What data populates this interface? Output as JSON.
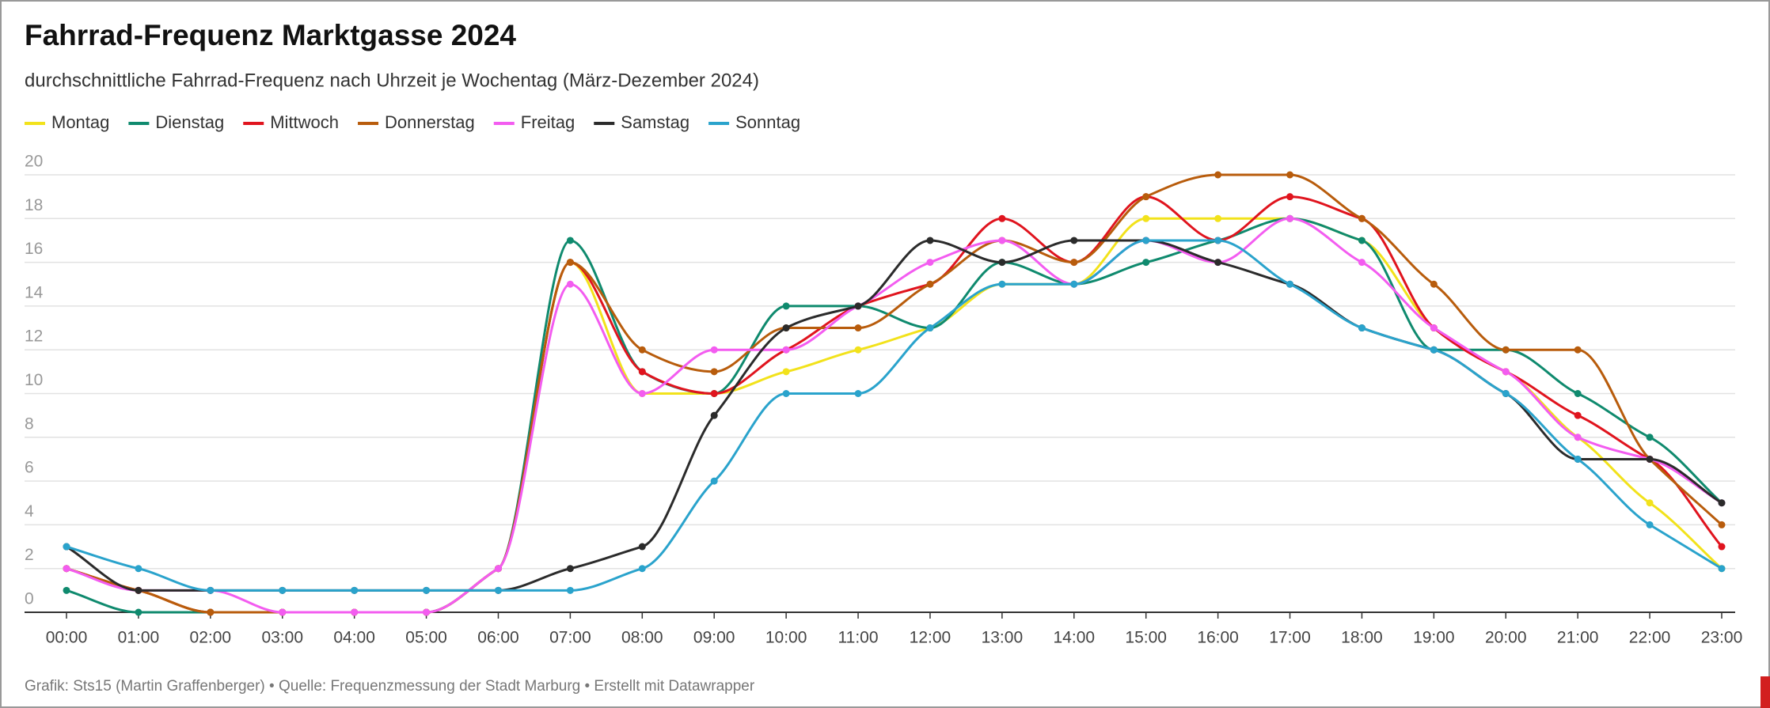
{
  "chart_data": {
    "type": "line",
    "title": "Fahrrad-Frequenz Marktgasse 2024",
    "subtitle": "durchschnittliche Fahrrad-Frequenz nach Uhrzeit je Wochentag (März-Dezember 2024)",
    "footer": "Grafik: Sts15 (Martin Graffenberger) • Quelle: Frequenzmessung der Stadt Marburg • Erstellt mit Datawrapper",
    "categories": [
      "00:00",
      "01:00",
      "02:00",
      "03:00",
      "04:00",
      "05:00",
      "06:00",
      "07:00",
      "08:00",
      "09:00",
      "10:00",
      "11:00",
      "12:00",
      "13:00",
      "14:00",
      "15:00",
      "16:00",
      "17:00",
      "18:00",
      "19:00",
      "20:00",
      "21:00",
      "22:00",
      "23:00"
    ],
    "ylim": [
      0,
      20
    ],
    "yticks": [
      0,
      2,
      4,
      6,
      8,
      10,
      12,
      14,
      16,
      18,
      20
    ],
    "grid": true,
    "legend": "top",
    "series": [
      {
        "name": "Montag",
        "color": "#f2e21b",
        "values": [
          2,
          1,
          0,
          0,
          0,
          0,
          2,
          16,
          10,
          10,
          11,
          12,
          13,
          15,
          15,
          18,
          18,
          18,
          17,
          13,
          11,
          8,
          5,
          2
        ]
      },
      {
        "name": "Dienstag",
        "color": "#0f8a6e",
        "values": [
          1,
          0,
          0,
          0,
          0,
          0,
          2,
          17,
          11,
          10,
          14,
          14,
          13,
          16,
          15,
          16,
          17,
          18,
          17,
          12,
          12,
          10,
          8,
          5
        ]
      },
      {
        "name": "Mittwoch",
        "color": "#e0141e",
        "values": [
          2,
          1,
          0,
          0,
          0,
          0,
          2,
          16,
          11,
          10,
          12,
          14,
          15,
          18,
          16,
          19,
          17,
          19,
          18,
          13,
          11,
          9,
          7,
          3
        ]
      },
      {
        "name": "Donnerstag",
        "color": "#b85c0c",
        "values": [
          2,
          1,
          0,
          0,
          0,
          0,
          2,
          16,
          12,
          11,
          13,
          13,
          15,
          17,
          16,
          19,
          20,
          20,
          18,
          15,
          12,
          12,
          7,
          4
        ]
      },
      {
        "name": "Freitag",
        "color": "#f35cf0",
        "values": [
          2,
          1,
          1,
          0,
          0,
          0,
          2,
          15,
          10,
          12,
          12,
          14,
          16,
          17,
          15,
          17,
          16,
          18,
          16,
          13,
          11,
          8,
          7,
          5
        ]
      },
      {
        "name": "Samstag",
        "color": "#2b2b2b",
        "values": [
          3,
          1,
          1,
          1,
          1,
          1,
          1,
          2,
          3,
          9,
          13,
          14,
          17,
          16,
          17,
          17,
          16,
          15,
          13,
          12,
          10,
          7,
          7,
          5
        ]
      },
      {
        "name": "Sonntag",
        "color": "#2aa3cc",
        "values": [
          3,
          2,
          1,
          1,
          1,
          1,
          1,
          1,
          2,
          6,
          10,
          10,
          13,
          15,
          15,
          17,
          17,
          15,
          13,
          12,
          10,
          7,
          4,
          2
        ]
      }
    ]
  }
}
